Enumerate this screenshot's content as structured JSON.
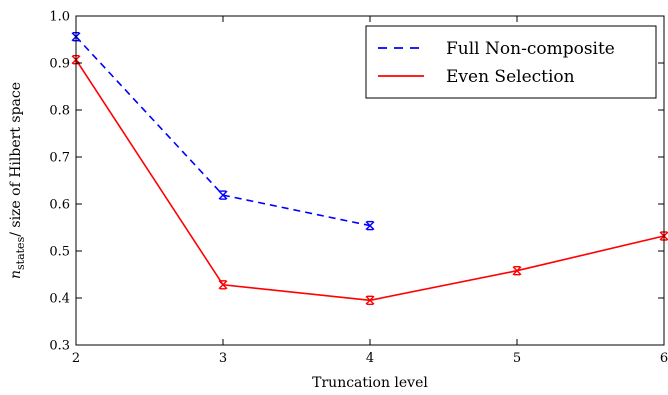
{
  "chart_data": {
    "type": "line",
    "title": "",
    "xlabel": "Truncation level",
    "ylabel": "n_states/ size of Hilbert space",
    "ylabel_main": "n",
    "ylabel_sub": "states",
    "ylabel_rest": "/ size of Hilbert space",
    "xlim": [
      2,
      6
    ],
    "ylim": [
      0.3,
      1.0
    ],
    "x_ticks": [
      2,
      3,
      4,
      5,
      6
    ],
    "x_tick_labels": [
      "2",
      "3",
      "4",
      "5",
      "6"
    ],
    "y_ticks": [
      0.3,
      0.4,
      0.5,
      0.6,
      0.7,
      0.8,
      0.9,
      1.0
    ],
    "y_tick_labels": [
      "0.3",
      "0.4",
      "0.5",
      "0.6",
      "0.7",
      "0.8",
      "0.9",
      "1.0"
    ],
    "grid": false,
    "legend_position": "top-right",
    "series": [
      {
        "name": "Full Non-composite",
        "color": "#0000ff",
        "line_style": "dashed",
        "marker": "x-errorbar",
        "x": [
          2,
          3,
          4
        ],
        "y": [
          0.956,
          0.619,
          0.554
        ]
      },
      {
        "name": "Even Selection",
        "color": "#ff0000",
        "line_style": "solid",
        "marker": "x-errorbar",
        "x": [
          2,
          3,
          4,
          5,
          6
        ],
        "y": [
          0.907,
          0.428,
          0.395,
          0.458,
          0.532
        ]
      }
    ]
  }
}
